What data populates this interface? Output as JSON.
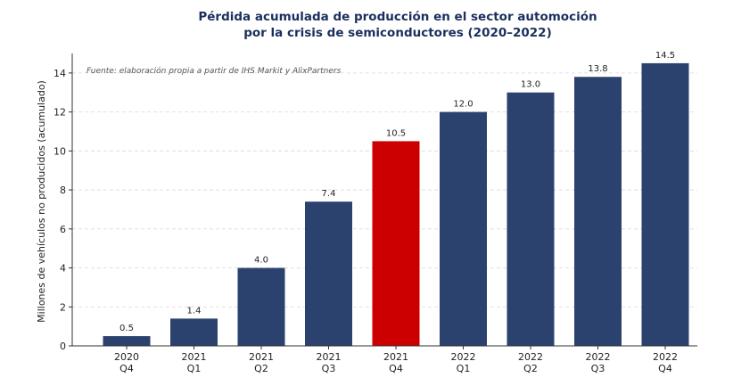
{
  "chart_data": {
    "type": "bar",
    "title_lines": [
      "Pérdida acumulada de producción en el sector automoción",
      "por la crisis de semiconductores (2020–2022)"
    ],
    "source_note": "Fuente: elaboración propia a partir de IHS Markit y AlixPartners",
    "ylabel": "Millones de vehículos no producidos (acumulado)",
    "xlabel": "",
    "ylim": [
      0,
      15
    ],
    "yticks": [
      "0",
      "2",
      "4",
      "6",
      "8",
      "10",
      "12",
      "14"
    ],
    "grid": true,
    "categories": [
      [
        "2020",
        "Q4"
      ],
      [
        "2021",
        "Q1"
      ],
      [
        "2021",
        "Q2"
      ],
      [
        "2021",
        "Q3"
      ],
      [
        "2021",
        "Q4"
      ],
      [
        "2022",
        "Q1"
      ],
      [
        "2022",
        "Q2"
      ],
      [
        "2022",
        "Q3"
      ],
      [
        "2022",
        "Q4"
      ]
    ],
    "values": [
      0.5,
      1.4,
      4.0,
      7.4,
      10.5,
      12.0,
      13.0,
      13.8,
      14.5
    ],
    "value_labels": [
      "0.5",
      "1.4",
      "4.0",
      "7.4",
      "10.5",
      "12.0",
      "13.0",
      "13.8",
      "14.5"
    ],
    "highlight_index": 4,
    "colors": {
      "bar": "#2b426e",
      "highlight": "#cc0000",
      "title": "#1b2f5e",
      "axis": "#333333",
      "grid": "#d9d9d9"
    }
  }
}
